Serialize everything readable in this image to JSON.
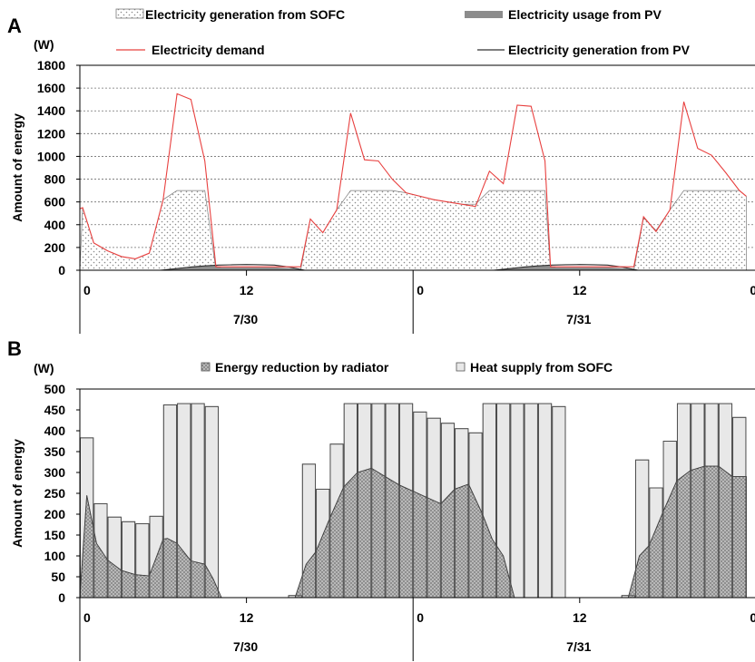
{
  "chart_data": [
    {
      "panel": "A",
      "type": "line",
      "ylabel": "Amount of energy",
      "unit": "(W)",
      "ylim": [
        0,
        1800
      ],
      "yticks": [
        0,
        200,
        400,
        600,
        800,
        1000,
        1200,
        1400,
        1600,
        1800
      ],
      "grid": true,
      "legend": "top",
      "xticks_hour": [
        {
          "t": 0,
          "label": "0"
        },
        {
          "t": 12,
          "label": "12"
        },
        {
          "t": 24,
          "label": "0"
        },
        {
          "t": 36,
          "label": "12"
        },
        {
          "t": 48,
          "label": "0"
        }
      ],
      "days": [
        {
          "t0": 0,
          "t1": 24,
          "label": "7/30"
        },
        {
          "t0": 24,
          "t1": 48,
          "label": "7/31"
        }
      ],
      "series": [
        {
          "name": "Electricity generation from SOFC",
          "style": "dotted-area",
          "t": [
            0,
            0.2,
            1,
            2,
            3,
            4,
            5,
            6,
            7,
            8,
            9,
            9.8,
            10.2,
            11,
            12,
            13,
            14,
            15,
            15.9,
            16.6,
            17.5,
            18.5,
            19.5,
            20.5,
            21.5,
            22.5,
            23.5,
            24.5,
            25.5,
            26.5,
            27.5,
            28.5,
            29.5,
            30.5,
            31.5,
            32.5,
            33.5,
            33.9,
            34.3,
            35,
            36,
            37,
            38,
            39,
            39.9,
            40.6,
            41.5,
            42.5,
            43.5,
            44.5,
            45.5,
            46.5,
            47.5,
            48
          ],
          "values": [
            0,
            550,
            240,
            170,
            120,
            100,
            150,
            620,
            700,
            700,
            700,
            0,
            0,
            0,
            0,
            0,
            0,
            0,
            0,
            450,
            330,
            530,
            700,
            700,
            700,
            700,
            680,
            650,
            620,
            600,
            580,
            580,
            700,
            700,
            700,
            700,
            700,
            0,
            0,
            0,
            0,
            0,
            0,
            0,
            0,
            460,
            350,
            530,
            700,
            700,
            700,
            700,
            700,
            650
          ]
        },
        {
          "name": "Electricity usage from PV",
          "style": "gray-area",
          "t": [
            0,
            5.8,
            7,
            8,
            9,
            9.8,
            10.2,
            11,
            12,
            13,
            14,
            15,
            15.9,
            16.2,
            29.8,
            31,
            32,
            33,
            33.9,
            34.3,
            35,
            36,
            37,
            38,
            39,
            39.9,
            40.2,
            48
          ],
          "values": [
            0,
            0,
            20,
            30,
            40,
            40,
            25,
            25,
            25,
            25,
            25,
            20,
            10,
            0,
            0,
            20,
            30,
            40,
            40,
            25,
            25,
            25,
            25,
            25,
            20,
            10,
            0,
            0
          ]
        },
        {
          "name": "Electricity generation from PV",
          "style": "black-line",
          "t": [
            0,
            5.8,
            7,
            8,
            9,
            10,
            11,
            12,
            13,
            14,
            15,
            16.2,
            29.8,
            31,
            32,
            33,
            34,
            35,
            36,
            37,
            38,
            39,
            40.2,
            48
          ],
          "values": [
            0,
            0,
            15,
            28,
            38,
            45,
            48,
            50,
            48,
            45,
            30,
            0,
            0,
            15,
            28,
            38,
            45,
            48,
            50,
            48,
            45,
            30,
            0,
            0
          ]
        },
        {
          "name": "Electricity demand",
          "style": "red-line",
          "t": [
            0,
            0.2,
            1,
            2,
            3,
            4,
            5,
            6,
            7,
            8,
            9,
            9.8,
            10.2,
            11,
            12,
            13,
            14,
            15,
            15.9,
            16.6,
            17.5,
            18.5,
            19.5,
            20.5,
            21.5,
            22.5,
            23.5,
            24.5,
            25.5,
            26.5,
            27.5,
            28.5,
            29.5,
            30.5,
            31.5,
            32.5,
            33.5,
            33.9,
            34.3,
            35,
            36,
            37,
            38,
            39,
            39.9,
            40.6,
            41.5,
            42.5,
            43.5,
            44.5,
            45.5,
            46.5,
            47.5,
            48
          ],
          "values": [
            540,
            550,
            240,
            170,
            120,
            100,
            150,
            620,
            1550,
            1500,
            960,
            30,
            30,
            30,
            30,
            30,
            30,
            30,
            30,
            450,
            330,
            530,
            1380,
            970,
            960,
            800,
            680,
            650,
            620,
            600,
            580,
            560,
            870,
            760,
            1450,
            1440,
            960,
            30,
            30,
            30,
            30,
            30,
            30,
            30,
            30,
            470,
            340,
            530,
            1480,
            1070,
            1010,
            860,
            700,
            650
          ]
        }
      ]
    },
    {
      "panel": "B",
      "type": "bar",
      "ylabel": "Amount of energy",
      "unit": "(W)",
      "ylim": [
        0,
        500
      ],
      "yticks": [
        0,
        50,
        100,
        150,
        200,
        250,
        300,
        350,
        400,
        450,
        500
      ],
      "grid": false,
      "legend": "top",
      "xticks_hour": [
        {
          "t": 0,
          "label": "0"
        },
        {
          "t": 12,
          "label": "12"
        },
        {
          "t": 24,
          "label": "0"
        },
        {
          "t": 36,
          "label": "12"
        },
        {
          "t": 48,
          "label": "0"
        }
      ],
      "days": [
        {
          "t0": 0,
          "t1": 24,
          "label": "7/30"
        },
        {
          "t0": 24,
          "t1": 48,
          "label": "7/31"
        }
      ],
      "series": [
        {
          "name": "Heat supply from SOFC",
          "style": "light-bars",
          "hour": [
            0,
            1,
            2,
            3,
            4,
            5,
            6,
            7,
            8,
            9,
            15,
            16,
            17,
            18,
            19,
            20,
            21,
            22,
            23,
            24,
            25,
            26,
            27,
            28,
            29,
            30,
            31,
            32,
            33,
            34,
            39,
            40,
            41,
            42,
            43,
            44,
            45,
            46,
            47
          ],
          "values": [
            383,
            225,
            193,
            182,
            177,
            195,
            462,
            465,
            465,
            458,
            5,
            320,
            260,
            368,
            465,
            465,
            465,
            465,
            465,
            445,
            430,
            418,
            405,
            395,
            465,
            465,
            465,
            465,
            465,
            458,
            5,
            330,
            263,
            375,
            465,
            465,
            465,
            465,
            432
          ]
        },
        {
          "name": "Energy reduction by radiator",
          "style": "hatched-area",
          "t": [
            0,
            0.5,
            1.2,
            2,
            3,
            4,
            5,
            6,
            6.3,
            7,
            8,
            9,
            9.6,
            10.2,
            15.5,
            16.3,
            17,
            18,
            19,
            20,
            21,
            22,
            23,
            24,
            25,
            26,
            27,
            28,
            29,
            29.7,
            30.5,
            31.3,
            32,
            33,
            33.6,
            34.2,
            39.5,
            40.3,
            41,
            42,
            43,
            44,
            45,
            46,
            47,
            48
          ],
          "values": [
            0,
            245,
            130,
            90,
            65,
            55,
            52,
            140,
            142,
            130,
            88,
            80,
            45,
            0,
            0,
            80,
            110,
            190,
            265,
            300,
            310,
            290,
            270,
            255,
            240,
            225,
            260,
            272,
            200,
            140,
            100,
            0,
            0,
            0,
            0,
            0,
            0,
            100,
            125,
            205,
            280,
            305,
            315,
            315,
            290,
            290
          ]
        }
      ]
    }
  ],
  "panels": {
    "A": {
      "letter": "A"
    },
    "B": {
      "letter": "B"
    }
  },
  "colors": {
    "demand": "#e8403f",
    "pv_line": "#303030",
    "pv_usage": "#8c8c8c",
    "grid": "#707070",
    "heat_bar": "#e8e8e8",
    "radiator": "#9a9a9a"
  }
}
